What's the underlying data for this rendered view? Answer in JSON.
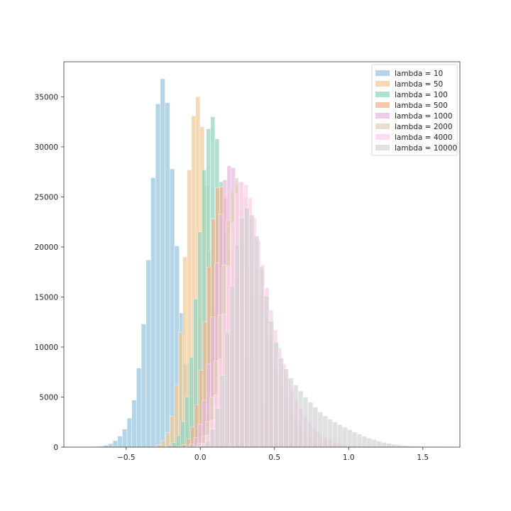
{
  "chart_data": {
    "type": "histogram",
    "title": "",
    "xlabel": "",
    "ylabel": "",
    "xlim": [
      -0.92,
      1.75
    ],
    "ylim": [
      0,
      38500
    ],
    "xticks": [
      -0.5,
      0.0,
      0.5,
      1.0,
      1.5
    ],
    "xtick_labels": [
      "−0.5",
      "0.0",
      "0.5",
      "1.0",
      "1.5"
    ],
    "yticks": [
      0,
      5000,
      10000,
      15000,
      20000,
      25000,
      30000,
      35000
    ],
    "ytick_labels": [
      "0",
      "5000",
      "10000",
      "15000",
      "20000",
      "25000",
      "30000",
      "35000"
    ],
    "grid": false,
    "legend_location": "top-right",
    "bins": 50,
    "series": [
      {
        "name": "lambda = 10",
        "color": "#a6cee3",
        "alpha": 0.85,
        "range": [
          -0.75,
          0.85
        ],
        "counts": [
          10,
          30,
          80,
          180,
          350,
          650,
          1100,
          1800,
          2900,
          4700,
          7900,
          12300,
          18700,
          26900,
          34300,
          36800,
          34400,
          27800,
          20100,
          13400,
          8300,
          4900,
          2700,
          1450,
          750,
          380,
          190,
          90,
          45,
          20,
          10,
          5,
          3,
          2,
          1,
          1,
          0,
          0,
          0,
          0,
          0,
          0,
          0,
          0,
          0,
          0,
          0,
          0,
          0,
          0
        ]
      },
      {
        "name": "lambda = 50",
        "color": "#f0c994",
        "alpha": 0.7,
        "range": [
          -0.35,
          1.1
        ],
        "counts": [
          20,
          80,
          250,
          650,
          1450,
          3100,
          6200,
          11500,
          19000,
          27700,
          33100,
          35000,
          32000,
          26100,
          19600,
          13700,
          9200,
          6000,
          3900,
          2500,
          1550,
          950,
          580,
          350,
          210,
          125,
          75,
          45,
          26,
          15,
          9,
          5,
          3,
          2,
          1,
          1,
          0,
          0,
          0,
          0,
          0,
          0,
          0,
          0,
          0,
          0,
          0,
          0,
          0,
          0
        ]
      },
      {
        "name": "lambda = 100",
        "color": "#8fd3bd",
        "alpha": 0.7,
        "range": [
          -0.25,
          1.2
        ],
        "counts": [
          40,
          150,
          450,
          1150,
          2550,
          5000,
          9000,
          14800,
          21500,
          27700,
          31800,
          33000,
          30800,
          26500,
          21400,
          16600,
          12500,
          9200,
          6600,
          4700,
          3300,
          2300,
          1600,
          1100,
          750,
          500,
          330,
          215,
          140,
          90,
          58,
          37,
          23,
          15,
          9,
          6,
          4,
          2,
          1,
          1,
          0,
          0,
          0,
          0,
          0,
          0,
          0,
          0,
          0,
          0
        ]
      },
      {
        "name": "lambda = 500",
        "color": "#eeb38c",
        "alpha": 0.7,
        "range": [
          -0.15,
          1.25
        ],
        "counts": [
          60,
          250,
          800,
          2000,
          4200,
          7700,
          12500,
          18000,
          22800,
          25900,
          26000,
          24900,
          22600,
          19700,
          16700,
          13800,
          11200,
          8900,
          7000,
          5400,
          4150,
          3150,
          2350,
          1750,
          1280,
          930,
          670,
          480,
          340,
          240,
          165,
          115,
          80,
          55,
          37,
          25,
          17,
          11,
          7,
          5,
          3,
          2,
          1,
          1,
          0,
          0,
          0,
          0,
          0,
          0
        ]
      },
      {
        "name": "lambda = 1000",
        "color": "#e7b5db",
        "alpha": 0.7,
        "range": [
          -0.1,
          1.3
        ],
        "counts": [
          80,
          320,
          950,
          2300,
          4700,
          8300,
          13000,
          18400,
          23300,
          26700,
          28100,
          27900,
          26300,
          23800,
          21000,
          18100,
          15300,
          12800,
          10500,
          8500,
          6800,
          5400,
          4250,
          3300,
          2550,
          1950,
          1480,
          1110,
          830,
          610,
          450,
          330,
          240,
          170,
          120,
          85,
          60,
          42,
          29,
          20,
          14,
          9,
          6,
          4,
          3,
          2,
          1,
          1,
          0,
          0
        ]
      },
      {
        "name": "lambda = 2000",
        "color": "#e2cfbe",
        "alpha": 0.7,
        "range": [
          -0.05,
          1.35
        ],
        "counts": [
          100,
          380,
          1100,
          2550,
          5000,
          8600,
          13200,
          18200,
          22700,
          25700,
          26900,
          26500,
          25000,
          22800,
          20300,
          17700,
          15200,
          12900,
          10800,
          8900,
          7300,
          5900,
          4750,
          3800,
          3000,
          2350,
          1830,
          1420,
          1090,
          830,
          630,
          475,
          355,
          265,
          195,
          145,
          105,
          77,
          55,
          40,
          28,
          20,
          14,
          10,
          7,
          5,
          3,
          2,
          1,
          1
        ]
      },
      {
        "name": "lambda = 4000",
        "color": "#fbd2ea",
        "alpha": 0.75,
        "range": [
          -0.02,
          1.4
        ],
        "counts": [
          120,
          420,
          1200,
          2700,
          5200,
          8800,
          13300,
          18100,
          22400,
          25300,
          26500,
          26200,
          24900,
          22900,
          20600,
          18200,
          15900,
          13700,
          11700,
          9900,
          8300,
          6900,
          5700,
          4650,
          3800,
          3050,
          2450,
          1950,
          1550,
          1220,
          950,
          740,
          570,
          440,
          335,
          255,
          195,
          145,
          110,
          82,
          60,
          45,
          33,
          24,
          17,
          12,
          9,
          6,
          4,
          3
        ]
      },
      {
        "name": "lambda = 10000",
        "color": "#d0d0d0",
        "alpha": 0.65,
        "range": [
          0.0,
          1.65
        ],
        "counts": [
          150,
          600,
          1800,
          3900,
          7200,
          11500,
          16100,
          20200,
          22900,
          23900,
          23200,
          21100,
          18000,
          15100,
          12600,
          10500,
          8900,
          7800,
          6900,
          6200,
          5600,
          5000,
          4500,
          4000,
          3500,
          3100,
          2800,
          2500,
          2250,
          2000,
          1750,
          1500,
          1300,
          1100,
          900,
          750,
          600,
          470,
          370,
          290,
          220,
          170,
          130,
          100,
          75,
          55,
          40,
          28,
          18,
          10
        ]
      }
    ]
  }
}
